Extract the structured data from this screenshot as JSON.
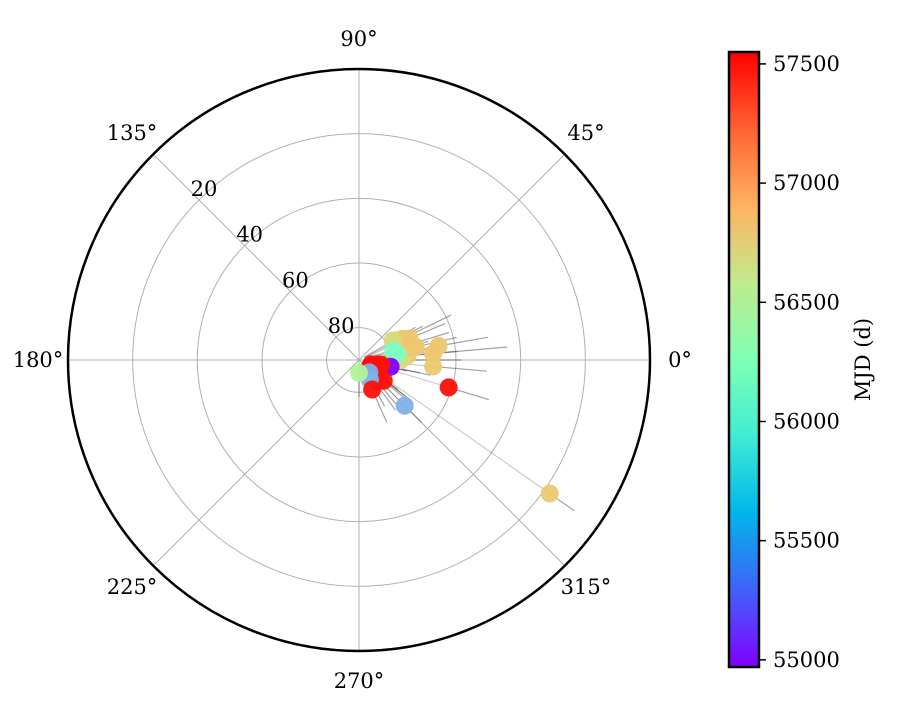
{
  "chart_data": {
    "type": "scatter",
    "subtype": "polar",
    "title": "",
    "radial_axis": {
      "ticks": [
        80,
        60,
        40,
        20
      ],
      "tick_labels": [
        "80",
        "60",
        "40",
        "20"
      ],
      "range_center_to_edge": [
        90,
        0
      ],
      "label_angle_deg": 135
    },
    "angular_axis": {
      "ticks_deg": [
        0,
        45,
        90,
        135,
        180,
        225,
        270,
        315
      ],
      "tick_labels": [
        "0°",
        "45°",
        "90°",
        "135°",
        "180°",
        "225°",
        "270°",
        "315°"
      ]
    },
    "grid": true,
    "colorbar": {
      "label": "MJD (d)",
      "min": 54970,
      "max": 57550,
      "ticks": [
        55000,
        55500,
        56000,
        56500,
        57000,
        57500
      ],
      "tick_labels": [
        "55000",
        "55500",
        "56000",
        "56500",
        "57000",
        "57500"
      ],
      "colormap": "rainbow"
    },
    "points": [
      {
        "angle": 5,
        "radius": 67,
        "mjd": 56820,
        "err_angle": 0.62,
        "err_radius": 0
      },
      {
        "angle": 10,
        "radius": 65,
        "mjd": 56820,
        "err_angle": 0.42,
        "err_radius": 0
      },
      {
        "angle": 13,
        "radius": 72,
        "mjd": 56820,
        "err_angle": 0.35,
        "err_radius": 0
      },
      {
        "angle": 17,
        "radius": 75,
        "mjd": 56820,
        "err_angle": 0.38,
        "err_radius": 0
      },
      {
        "angle": 23,
        "radius": 73,
        "mjd": 56820,
        "err_angle": 0.32,
        "err_radius": 0
      },
      {
        "angle": 26,
        "radius": 75,
        "mjd": 56820,
        "err_angle": 0.45,
        "err_radius": 0
      },
      {
        "angle": 28,
        "radius": 77,
        "mjd": 56800,
        "err_angle": 0.25,
        "err_radius": 0
      },
      {
        "angle": 30,
        "radius": 78,
        "mjd": 56700,
        "err_angle": 0.22,
        "err_radius": 0
      },
      {
        "angle": 7,
        "radius": 79,
        "mjd": 56800,
        "err_angle": 0.25,
        "err_radius": 0
      },
      {
        "angle": 5,
        "radius": 75,
        "mjd": 56800,
        "err_angle": 0.42,
        "err_radius": 0
      },
      {
        "angle": 0,
        "radius": 77,
        "mjd": 56700,
        "err_angle": 0.5,
        "err_radius": 0
      },
      {
        "angle": 15,
        "radius": 79,
        "mjd": 56150,
        "err_angle": 0.3,
        "err_radius": 0
      },
      {
        "angle": 9,
        "radius": 78,
        "mjd": 56150,
        "err_angle": 0.3,
        "err_radius": 0
      },
      {
        "angle": -5,
        "radius": 67,
        "mjd": 56800,
        "err_angle": 0.45,
        "err_radius": 0
      },
      {
        "angle": -12,
        "radius": 80,
        "mjd": 54970,
        "err_angle": 0.25,
        "err_radius": 0
      },
      {
        "angle": -12,
        "radius": 83,
        "mjd": 57500,
        "err_angle": 0.42,
        "err_radius": 0
      },
      {
        "angle": -13,
        "radius": 84,
        "mjd": 57500,
        "err_angle": 0.25,
        "err_radius": 0
      },
      {
        "angle": -20,
        "radius": 86,
        "mjd": 57500,
        "err_angle": 0.2,
        "err_radius": 0
      },
      {
        "angle": -19,
        "radius": 85,
        "mjd": 57500,
        "err_angle": 0.2,
        "err_radius": 0
      },
      {
        "angle": -25,
        "radius": 86,
        "mjd": 57500,
        "err_angle": 0.2,
        "err_radius": 0
      },
      {
        "angle": -37,
        "radius": 86,
        "mjd": 57500,
        "err_angle": 0.3,
        "err_radius": 0
      },
      {
        "angle": -38,
        "radius": 83,
        "mjd": 57500,
        "err_angle": 0.3,
        "err_radius": 0
      },
      {
        "angle": -38,
        "radius": 82,
        "mjd": 57500,
        "err_angle": 0.3,
        "err_radius": 0
      },
      {
        "angle": -40,
        "radius": 80,
        "mjd": 57500,
        "err_angle": 0.3,
        "err_radius": 0
      },
      {
        "angle": -17,
        "radius": 61,
        "mjd": 57500,
        "err_angle": 0.35,
        "err_radius": 0
      },
      {
        "angle": -54,
        "radius": 82,
        "mjd": 57500,
        "err_angle": 0.3,
        "err_radius": 0
      },
      {
        "angle": -50,
        "radius": 85,
        "mjd": 55600,
        "err_angle": 0.35,
        "err_radius": 0
      },
      {
        "angle": -61,
        "radius": 83,
        "mjd": 55600,
        "err_angle": 0.25,
        "err_radius": 0
      },
      {
        "angle": -66,
        "radius": 80,
        "mjd": 57500,
        "err_angle": 0.3,
        "err_radius": 0
      },
      {
        "angle": -45,
        "radius": 70,
        "mjd": 55600,
        "err_angle": 0.2,
        "err_radius": 0
      },
      {
        "angle": -90,
        "radius": 86,
        "mjd": 56500,
        "err_angle": 0.2,
        "err_radius": 0
      },
      {
        "angle": -35,
        "radius": 18,
        "mjd": 56800,
        "err_angle": 0.25,
        "err_radius": 0
      }
    ]
  }
}
